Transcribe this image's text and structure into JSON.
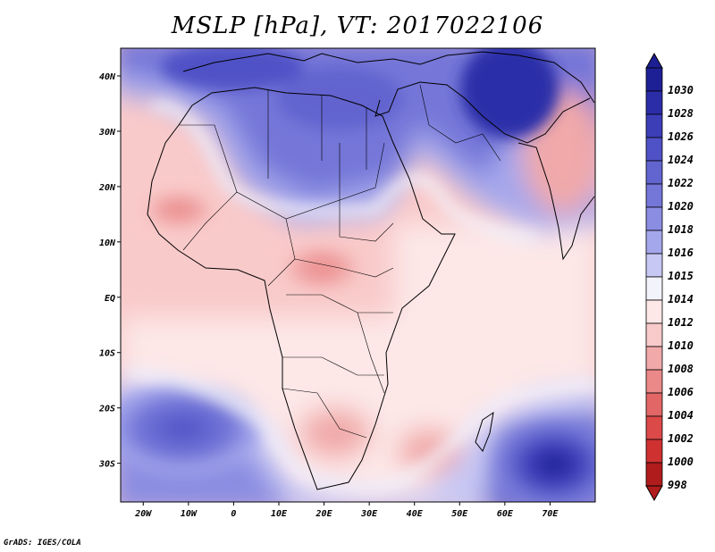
{
  "title": "MSLP [hPa], VT: 2017022106",
  "credit": "GrADS: IGES/COLA",
  "map": {
    "lon_range": [
      -25,
      80
    ],
    "lat_range": [
      -37,
      45
    ],
    "lon_ticks": [
      {
        "lon": -20,
        "label": "20W"
      },
      {
        "lon": -10,
        "label": "10W"
      },
      {
        "lon": 0,
        "label": "0"
      },
      {
        "lon": 10,
        "label": "10E"
      },
      {
        "lon": 20,
        "label": "20E"
      },
      {
        "lon": 30,
        "label": "30E"
      },
      {
        "lon": 40,
        "label": "40E"
      },
      {
        "lon": 50,
        "label": "50E"
      },
      {
        "lon": 60,
        "label": "60E"
      },
      {
        "lon": 70,
        "label": "70E"
      }
    ],
    "lat_ticks": [
      {
        "lat": 40,
        "label": "40N"
      },
      {
        "lat": 30,
        "label": "30N"
      },
      {
        "lat": 20,
        "label": "20N"
      },
      {
        "lat": 10,
        "label": "10N"
      },
      {
        "lat": 0,
        "label": "EQ"
      },
      {
        "lat": -10,
        "label": "10S"
      },
      {
        "lat": -20,
        "label": "20S"
      },
      {
        "lat": -30,
        "label": "30S"
      }
    ]
  },
  "colorbar": {
    "levels": [
      "1030",
      "1028",
      "1026",
      "1024",
      "1022",
      "1020",
      "1018",
      "1016",
      "1015",
      "1014",
      "1012",
      "1010",
      "1008",
      "1006",
      "1004",
      "1002",
      "1000",
      "998"
    ],
    "colors": [
      "#1d1f95",
      "#2b2da8",
      "#3c3eb8",
      "#4f51c6",
      "#6264cf",
      "#7476d8",
      "#8b8de2",
      "#a5a7ec",
      "#c7c8f4",
      "#f3f3fb",
      "#fde7e7",
      "#f9caca",
      "#f1a9a9",
      "#eb8888",
      "#e36666",
      "#db4949",
      "#cf3131",
      "#b01c1c"
    ]
  }
}
